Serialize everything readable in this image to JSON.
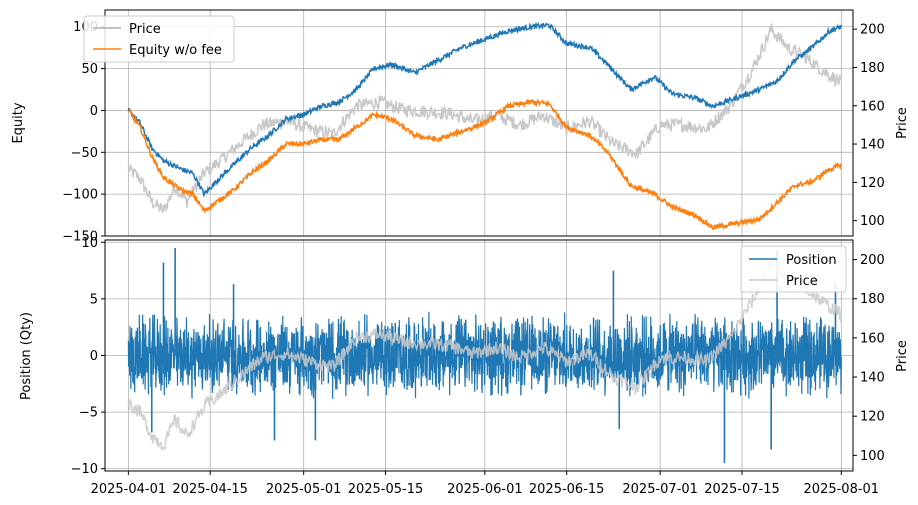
{
  "chart_data": [
    {
      "type": "line",
      "title": "",
      "xlabel": "",
      "ylabel": "Equity",
      "ylabel_right": "Price",
      "grid": true,
      "legend_placement": "top-left",
      "x_ticks": [
        "2025-04-01",
        "2025-04-15",
        "2025-05-01",
        "2025-05-15",
        "2025-06-01",
        "2025-06-15",
        "2025-07-01",
        "2025-07-15",
        "2025-08-01"
      ],
      "y_ticks": [
        "100",
        "50",
        "0",
        "−50",
        "−100",
        "−150"
      ],
      "y_ticks_right": [
        "200",
        "180",
        "160",
        "140",
        "120",
        "100"
      ],
      "ylim": [
        -150,
        120
      ],
      "ylim_right": [
        92,
        210
      ],
      "xlim": [
        "2025-03-28",
        "2025-08-03"
      ],
      "legend": [
        {
          "name": "Price",
          "color": "#b0b0b0"
        },
        {
          "name": "Equity w/o fee",
          "color": "#ff7f0e"
        }
      ],
      "series": [
        {
          "name": "Equity",
          "axis": "left",
          "color": "#1f77b4",
          "x": [
            "2025-04-01",
            "2025-04-03",
            "2025-04-05",
            "2025-04-07",
            "2025-04-10",
            "2025-04-12",
            "2025-04-14",
            "2025-04-16",
            "2025-04-19",
            "2025-04-22",
            "2025-04-25",
            "2025-04-28",
            "2025-05-01",
            "2025-05-04",
            "2025-05-07",
            "2025-05-10",
            "2025-05-13",
            "2025-05-16",
            "2025-05-20",
            "2025-05-24",
            "2025-05-28",
            "2025-06-01",
            "2025-06-05",
            "2025-06-09",
            "2025-06-12",
            "2025-06-15",
            "2025-06-19",
            "2025-06-22",
            "2025-06-26",
            "2025-06-30",
            "2025-07-03",
            "2025-07-07",
            "2025-07-10",
            "2025-07-14",
            "2025-07-18",
            "2025-07-21",
            "2025-07-24",
            "2025-07-27",
            "2025-07-30",
            "2025-08-01"
          ],
          "y": [
            0,
            -15,
            -45,
            -60,
            -70,
            -75,
            -100,
            -85,
            -65,
            -45,
            -30,
            -10,
            -5,
            5,
            10,
            25,
            50,
            55,
            45,
            60,
            75,
            85,
            95,
            100,
            102,
            80,
            75,
            55,
            25,
            40,
            20,
            15,
            5,
            15,
            25,
            35,
            60,
            75,
            95,
            100
          ]
        },
        {
          "name": "Equity w/o fee",
          "axis": "left",
          "color": "#ff7f0e",
          "x": [
            "2025-04-01",
            "2025-04-03",
            "2025-04-05",
            "2025-04-07",
            "2025-04-10",
            "2025-04-12",
            "2025-04-14",
            "2025-04-16",
            "2025-04-19",
            "2025-04-22",
            "2025-04-25",
            "2025-04-28",
            "2025-05-01",
            "2025-05-04",
            "2025-05-07",
            "2025-05-10",
            "2025-05-13",
            "2025-05-16",
            "2025-05-20",
            "2025-05-24",
            "2025-05-28",
            "2025-06-01",
            "2025-06-05",
            "2025-06-09",
            "2025-06-12",
            "2025-06-15",
            "2025-06-19",
            "2025-06-22",
            "2025-06-26",
            "2025-06-30",
            "2025-07-03",
            "2025-07-07",
            "2025-07-10",
            "2025-07-14",
            "2025-07-18",
            "2025-07-21",
            "2025-07-24",
            "2025-07-27",
            "2025-07-30",
            "2025-08-01"
          ],
          "y": [
            0,
            -20,
            -55,
            -80,
            -95,
            -100,
            -120,
            -110,
            -95,
            -75,
            -60,
            -40,
            -40,
            -35,
            -35,
            -20,
            -5,
            -10,
            -30,
            -35,
            -25,
            -15,
            5,
            10,
            8,
            -20,
            -30,
            -50,
            -90,
            -100,
            -115,
            -125,
            -140,
            -135,
            -130,
            -110,
            -90,
            -85,
            -70,
            -65
          ]
        },
        {
          "name": "Price",
          "axis": "right",
          "color": "#c8c8c8",
          "x": [
            "2025-04-01",
            "2025-04-03",
            "2025-04-05",
            "2025-04-07",
            "2025-04-09",
            "2025-04-11",
            "2025-04-14",
            "2025-04-17",
            "2025-04-20",
            "2025-04-24",
            "2025-04-28",
            "2025-05-02",
            "2025-05-06",
            "2025-05-10",
            "2025-05-14",
            "2025-05-18",
            "2025-05-22",
            "2025-05-26",
            "2025-05-30",
            "2025-06-03",
            "2025-06-07",
            "2025-06-11",
            "2025-06-15",
            "2025-06-19",
            "2025-06-23",
            "2025-06-27",
            "2025-07-01",
            "2025-07-05",
            "2025-07-09",
            "2025-07-13",
            "2025-07-17",
            "2025-07-20",
            "2025-07-23",
            "2025-07-26",
            "2025-07-29",
            "2025-08-01"
          ],
          "y": [
            127,
            122,
            110,
            105,
            118,
            110,
            125,
            132,
            140,
            150,
            152,
            148,
            145,
            160,
            162,
            158,
            157,
            156,
            152,
            155,
            150,
            155,
            148,
            152,
            140,
            135,
            150,
            150,
            148,
            160,
            180,
            200,
            190,
            185,
            178,
            172
          ]
        }
      ]
    },
    {
      "type": "line",
      "title": "",
      "xlabel": "",
      "ylabel": "Position (Qty)",
      "ylabel_right": "Price",
      "grid": true,
      "legend_placement": "top-right",
      "y_ticks": [
        "10",
        "5",
        "0",
        "−5",
        "−10"
      ],
      "y_ticks_right": [
        "200",
        "180",
        "160",
        "140",
        "120",
        "100"
      ],
      "ylim": [
        -10.2,
        10.2
      ],
      "ylim_right": [
        92,
        210
      ],
      "legend": [
        {
          "name": "Position",
          "color": "#1f77b4"
        },
        {
          "name": "Price",
          "color": "#c8c8c8"
        }
      ],
      "position_envelope": {
        "typical_abs": 2.8,
        "max": 9.5,
        "min": -9.5,
        "spikes": [
          {
            "x": "2025-04-09",
            "y": 9.5
          },
          {
            "x": "2025-04-07",
            "y": 8.2
          },
          {
            "x": "2025-07-21",
            "y": 9.3
          },
          {
            "x": "2025-07-12",
            "y": -9.5
          },
          {
            "x": "2025-07-20",
            "y": -8.3
          },
          {
            "x": "2025-04-05",
            "y": -6.8
          },
          {
            "x": "2025-04-26",
            "y": -7.5
          },
          {
            "x": "2025-05-03",
            "y": -7.5
          },
          {
            "x": "2025-06-24",
            "y": -6.5
          },
          {
            "x": "2025-04-19",
            "y": 6.3
          },
          {
            "x": "2025-06-23",
            "y": 7.5
          },
          {
            "x": "2025-07-31",
            "y": 6.5
          }
        ]
      }
    }
  ]
}
